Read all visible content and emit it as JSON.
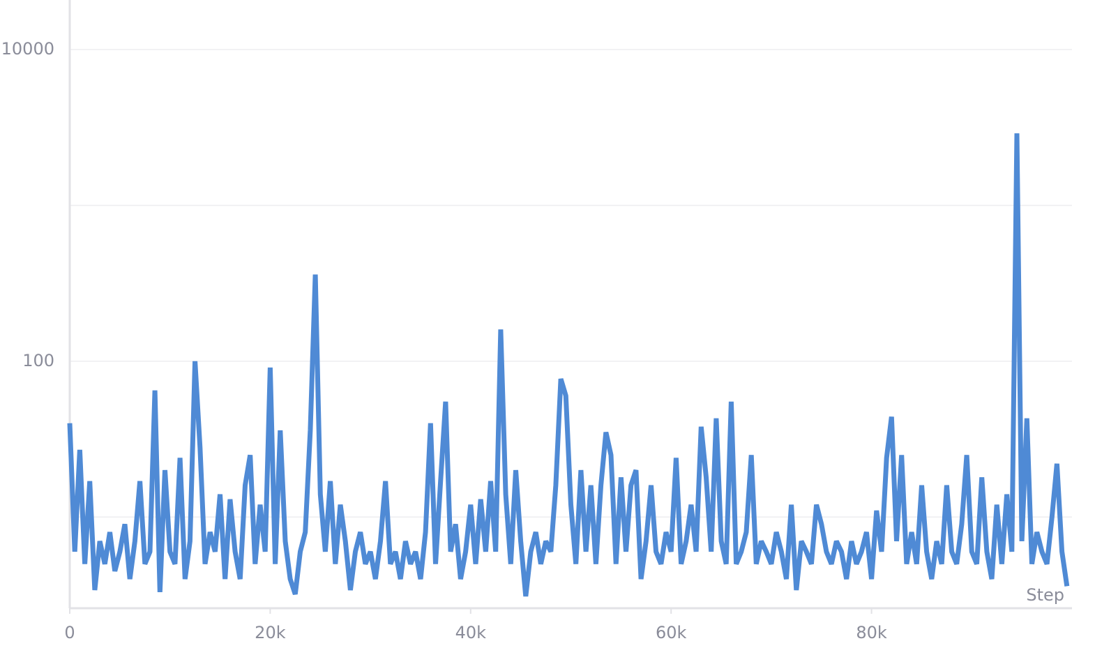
{
  "chart_data": {
    "type": "line",
    "log_y": true,
    "grid": true,
    "x_label": "Step",
    "xlim": [
      0,
      100000
    ],
    "xticks": [
      0,
      {
        "value": 20000,
        "label": "20k"
      },
      {
        "value": 40000,
        "label": "40k"
      },
      {
        "value": 60000,
        "label": "60k"
      },
      {
        "value": 80000,
        "label": "80k"
      }
    ],
    "ylim": [
      2.6,
      20800
    ],
    "yticks": [
      100,
      10000
    ],
    "ygrid_minor": [
      10,
      1000
    ],
    "x": [
      0,
      500,
      1000,
      1500,
      2000,
      2500,
      3000,
      3500,
      4000,
      4500,
      5000,
      5500,
      6000,
      6500,
      7000,
      7500,
      8000,
      8500,
      9000,
      9500,
      10000,
      10500,
      11000,
      11500,
      12000,
      12500,
      13000,
      13500,
      14000,
      14500,
      15000,
      15500,
      16000,
      16500,
      17000,
      17500,
      18000,
      18500,
      19000,
      19500,
      20000,
      20500,
      21000,
      21500,
      22000,
      22500,
      23000,
      23500,
      24000,
      24500,
      25000,
      25500,
      26000,
      26500,
      27000,
      27500,
      28000,
      28500,
      29000,
      29500,
      30000,
      30500,
      31000,
      31500,
      32000,
      32500,
      33000,
      33500,
      34000,
      34500,
      35000,
      35500,
      36000,
      36500,
      37000,
      37500,
      38000,
      38500,
      39000,
      39500,
      40000,
      40500,
      41000,
      41500,
      42000,
      42500,
      43000,
      43500,
      44000,
      44500,
      45000,
      45500,
      46000,
      46500,
      47000,
      47500,
      48000,
      48500,
      49000,
      49500,
      50000,
      50500,
      51000,
      51500,
      52000,
      52500,
      53000,
      53500,
      54000,
      54500,
      55000,
      55500,
      56000,
      56500,
      57000,
      57500,
      58000,
      58500,
      59000,
      59500,
      60000,
      60500,
      61000,
      61500,
      62000,
      62500,
      63000,
      63500,
      64000,
      64500,
      65000,
      65500,
      66000,
      66500,
      67000,
      67500,
      68000,
      68500,
      69000,
      69500,
      70000,
      70500,
      71000,
      71500,
      72000,
      72500,
      73000,
      73500,
      74000,
      74500,
      75000,
      75500,
      76000,
      76500,
      77000,
      77500,
      78000,
      78500,
      79000,
      79500,
      80000,
      80500,
      81000,
      81500,
      82000,
      82500,
      83000,
      83500,
      84000,
      84500,
      85000,
      85500,
      86000,
      86500,
      87000,
      87500,
      88000,
      88500,
      89000,
      89500,
      90000,
      90500,
      91000,
      91500,
      92000,
      92500,
      93000,
      93500,
      94000,
      94500,
      95000,
      95500,
      96000,
      96500,
      97000,
      97500,
      98000,
      98500,
      99000,
      99500
    ],
    "series": [
      {
        "color": "#4f8ad5",
        "values": [
          40,
          6,
          27,
          5,
          17,
          3.4,
          7,
          5,
          8,
          4.5,
          6,
          9,
          4,
          7,
          17,
          5,
          6,
          65,
          3.3,
          20,
          6,
          5,
          24,
          4,
          7,
          100,
          28,
          5,
          8,
          6,
          14,
          4,
          13,
          6,
          4,
          16,
          25,
          5,
          12,
          6,
          91,
          5,
          36,
          7,
          4,
          3.2,
          6,
          8,
          36,
          360,
          14,
          6,
          17,
          5,
          12,
          7,
          3.4,
          6,
          8,
          5,
          6,
          4,
          7,
          17,
          5,
          6,
          4,
          7,
          5,
          6,
          4,
          8,
          40,
          5,
          17,
          55,
          6,
          9,
          4,
          6,
          12,
          5,
          13,
          6,
          17,
          6,
          160,
          14,
          5,
          20,
          7,
          3.1,
          6,
          8,
          5,
          7,
          6,
          16,
          77,
          60,
          12,
          5,
          20,
          6,
          16,
          5,
          16,
          35,
          25,
          5,
          18,
          6,
          16,
          20,
          4,
          7,
          16,
          6,
          5,
          8,
          6,
          24,
          5,
          7,
          12,
          6,
          38,
          18,
          6,
          43,
          7,
          5,
          55,
          5,
          6,
          8,
          25,
          5,
          7,
          6,
          5,
          8,
          6,
          4,
          12,
          3.4,
          7,
          6,
          5,
          12,
          9,
          6,
          5,
          7,
          6,
          4,
          7,
          5,
          6,
          8,
          4,
          11,
          6,
          24,
          44,
          7,
          25,
          5,
          8,
          5,
          16,
          6,
          4,
          7,
          5,
          16,
          6,
          5,
          9,
          25,
          6,
          5,
          18,
          6,
          4,
          12,
          5,
          14,
          6,
          2900,
          7,
          43,
          5,
          8,
          6,
          5,
          10,
          22,
          6,
          3.6
        ]
      }
    ]
  }
}
